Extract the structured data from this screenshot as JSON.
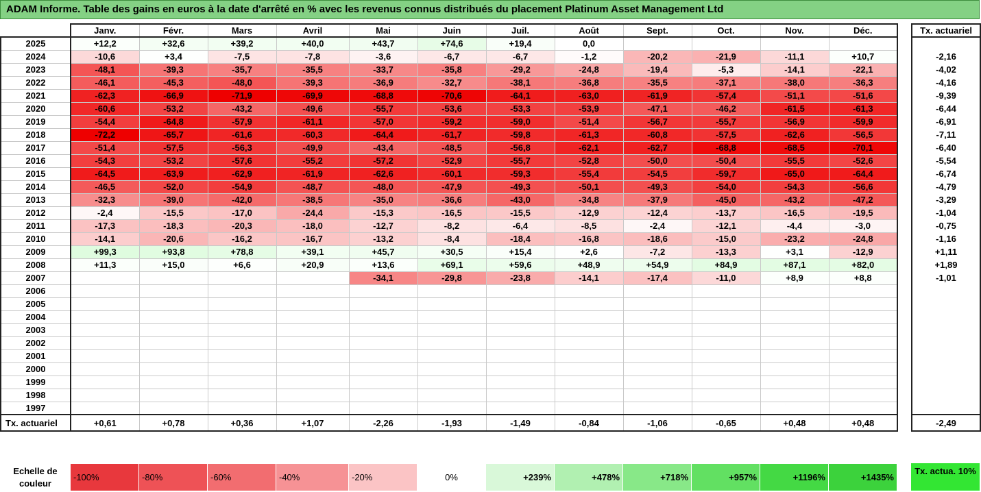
{
  "title": "ADAM Informe. Table des gains en euros à la date d'arrêté en % avec les revenus connus distribués du placement Platinum Asset Management Ltd",
  "months": [
    "Janv.",
    "Févr.",
    "Mars",
    "Avril",
    "Mai",
    "Juin",
    "Juil.",
    "Août",
    "Sept.",
    "Oct.",
    "Nov.",
    "Déc."
  ],
  "side_header": "Tx. actuariel",
  "rows": [
    {
      "year": "2025",
      "cells": [
        "+12,2",
        "+32,6",
        "+39,2",
        "+40,0",
        "+43,7",
        "+74,6",
        "+19,4",
        "0,0",
        "",
        "",
        "",
        ""
      ],
      "tx": ""
    },
    {
      "year": "2024",
      "cells": [
        "-10,6",
        "+3,4",
        "-7,5",
        "-7,8",
        "-3,6",
        "-6,7",
        "-6,7",
        "-1,2",
        "-20,2",
        "-21,9",
        "-11,1",
        "+10,7"
      ],
      "tx": "-2,16"
    },
    {
      "year": "2023",
      "cells": [
        "-48,1",
        "-39,3",
        "-35,7",
        "-35,5",
        "-33,7",
        "-35,8",
        "-29,2",
        "-24,8",
        "-19,4",
        "-5,3",
        "-14,1",
        "-22,1"
      ],
      "tx": "-4,02"
    },
    {
      "year": "2022",
      "cells": [
        "-46,1",
        "-45,3",
        "-48,0",
        "-39,3",
        "-36,9",
        "-32,7",
        "-38,1",
        "-36,8",
        "-35,5",
        "-37,1",
        "-38,0",
        "-36,3"
      ],
      "tx": "-4,16"
    },
    {
      "year": "2021",
      "cells": [
        "-62,3",
        "-66,9",
        "-71,9",
        "-69,9",
        "-68,8",
        "-70,6",
        "-64,1",
        "-63,0",
        "-61,9",
        "-57,4",
        "-51,1",
        "-51,6"
      ],
      "tx": "-9,39"
    },
    {
      "year": "2020",
      "cells": [
        "-60,6",
        "-53,2",
        "-43,2",
        "-49,6",
        "-55,7",
        "-53,6",
        "-53,3",
        "-53,9",
        "-47,1",
        "-46,2",
        "-61,5",
        "-61,3"
      ],
      "tx": "-6,44"
    },
    {
      "year": "2019",
      "cells": [
        "-54,4",
        "-64,8",
        "-57,9",
        "-61,1",
        "-57,0",
        "-59,2",
        "-59,0",
        "-51,4",
        "-56,7",
        "-55,7",
        "-56,9",
        "-59,9"
      ],
      "tx": "-6,91"
    },
    {
      "year": "2018",
      "cells": [
        "-72,2",
        "-65,7",
        "-61,6",
        "-60,3",
        "-64,4",
        "-61,7",
        "-59,8",
        "-61,3",
        "-60,8",
        "-57,5",
        "-62,6",
        "-56,5"
      ],
      "tx": "-7,11"
    },
    {
      "year": "2017",
      "cells": [
        "-51,4",
        "-57,5",
        "-56,3",
        "-49,9",
        "-43,4",
        "-48,5",
        "-56,8",
        "-62,1",
        "-62,7",
        "-68,8",
        "-68,5",
        "-70,1"
      ],
      "tx": "-6,40"
    },
    {
      "year": "2016",
      "cells": [
        "-54,3",
        "-53,2",
        "-57,6",
        "-55,2",
        "-57,2",
        "-52,9",
        "-55,7",
        "-52,8",
        "-50,0",
        "-50,4",
        "-55,5",
        "-52,6"
      ],
      "tx": "-5,54"
    },
    {
      "year": "2015",
      "cells": [
        "-64,5",
        "-63,9",
        "-62,9",
        "-61,9",
        "-62,6",
        "-60,1",
        "-59,3",
        "-55,4",
        "-54,5",
        "-59,7",
        "-65,0",
        "-64,4"
      ],
      "tx": "-6,74"
    },
    {
      "year": "2014",
      "cells": [
        "-46,5",
        "-52,0",
        "-54,9",
        "-48,7",
        "-48,0",
        "-47,9",
        "-49,3",
        "-50,1",
        "-49,3",
        "-54,0",
        "-54,3",
        "-56,6"
      ],
      "tx": "-4,79"
    },
    {
      "year": "2013",
      "cells": [
        "-32,3",
        "-39,0",
        "-42,0",
        "-38,5",
        "-35,0",
        "-36,6",
        "-43,0",
        "-34,8",
        "-37,9",
        "-45,0",
        "-43,2",
        "-47,2"
      ],
      "tx": "-3,29"
    },
    {
      "year": "2012",
      "cells": [
        "-2,4",
        "-15,5",
        "-17,0",
        "-24,4",
        "-15,3",
        "-16,5",
        "-15,5",
        "-12,9",
        "-12,4",
        "-13,7",
        "-16,5",
        "-19,5"
      ],
      "tx": "-1,04"
    },
    {
      "year": "2011",
      "cells": [
        "-17,3",
        "-18,3",
        "-20,3",
        "-18,0",
        "-12,7",
        "-8,2",
        "-6,4",
        "-8,5",
        "-2,4",
        "-12,1",
        "-4,4",
        "-3,0"
      ],
      "tx": "-0,75"
    },
    {
      "year": "2010",
      "cells": [
        "-14,1",
        "-20,6",
        "-16,2",
        "-16,7",
        "-13,2",
        "-8,4",
        "-18,4",
        "-16,8",
        "-18,6",
        "-15,0",
        "-23,2",
        "-24,8"
      ],
      "tx": "-1,16"
    },
    {
      "year": "2009",
      "cells": [
        "+99,3",
        "+93,8",
        "+78,8",
        "+39,1",
        "+45,7",
        "+30,5",
        "+15,4",
        "+2,6",
        "-7,2",
        "-13,3",
        "+3,1",
        "-12,9"
      ],
      "tx": "+1,11"
    },
    {
      "year": "2008",
      "cells": [
        "+11,3",
        "+15,0",
        "+6,6",
        "+20,9",
        "+13,6",
        "+69,1",
        "+59,6",
        "+48,9",
        "+54,9",
        "+84,9",
        "+87,1",
        "+82,0"
      ],
      "tx": "+1,89"
    },
    {
      "year": "2007",
      "cells": [
        "",
        "",
        "",
        "",
        "-34,1",
        "-29,8",
        "-23,8",
        "-14,1",
        "-17,4",
        "-11,0",
        "+8,9",
        "+8,8"
      ],
      "tx": "-1,01"
    },
    {
      "year": "2006",
      "cells": [
        "",
        "",
        "",
        "",
        "",
        "",
        "",
        "",
        "",
        "",
        "",
        ""
      ],
      "tx": ""
    },
    {
      "year": "2005",
      "cells": [
        "",
        "",
        "",
        "",
        "",
        "",
        "",
        "",
        "",
        "",
        "",
        ""
      ],
      "tx": ""
    },
    {
      "year": "2004",
      "cells": [
        "",
        "",
        "",
        "",
        "",
        "",
        "",
        "",
        "",
        "",
        "",
        ""
      ],
      "tx": ""
    },
    {
      "year": "2003",
      "cells": [
        "",
        "",
        "",
        "",
        "",
        "",
        "",
        "",
        "",
        "",
        "",
        ""
      ],
      "tx": ""
    },
    {
      "year": "2002",
      "cells": [
        "",
        "",
        "",
        "",
        "",
        "",
        "",
        "",
        "",
        "",
        "",
        ""
      ],
      "tx": ""
    },
    {
      "year": "2001",
      "cells": [
        "",
        "",
        "",
        "",
        "",
        "",
        "",
        "",
        "",
        "",
        "",
        ""
      ],
      "tx": ""
    },
    {
      "year": "2000",
      "cells": [
        "",
        "",
        "",
        "",
        "",
        "",
        "",
        "",
        "",
        "",
        "",
        ""
      ],
      "tx": ""
    },
    {
      "year": "1999",
      "cells": [
        "",
        "",
        "",
        "",
        "",
        "",
        "",
        "",
        "",
        "",
        "",
        ""
      ],
      "tx": ""
    },
    {
      "year": "1998",
      "cells": [
        "",
        "",
        "",
        "",
        "",
        "",
        "",
        "",
        "",
        "",
        "",
        ""
      ],
      "tx": ""
    },
    {
      "year": "1997",
      "cells": [
        "",
        "",
        "",
        "",
        "",
        "",
        "",
        "",
        "",
        "",
        "",
        ""
      ],
      "tx": ""
    }
  ],
  "tx_row": {
    "label": "Tx. actuariel",
    "cells": [
      "+0,61",
      "+0,78",
      "+0,36",
      "+1,07",
      "-2,26",
      "-1,93",
      "-1,49",
      "-0,84",
      "-1,06",
      "-0,65",
      "+0,48",
      "+0,48"
    ],
    "tx": "-2,49"
  },
  "legend": {
    "label": "Echelle de couleur",
    "items": [
      {
        "text": "-100%",
        "color": "#e8383d",
        "kind": "neg"
      },
      {
        "text": "-80%",
        "color": "#ee5256",
        "kind": "neg"
      },
      {
        "text": "-60%",
        "color": "#f26d70",
        "kind": "neg"
      },
      {
        "text": "-40%",
        "color": "#f69295",
        "kind": "neg"
      },
      {
        "text": "-20%",
        "color": "#fbc4c5",
        "kind": "neg"
      },
      {
        "text": "0%",
        "color": "#ffffff",
        "kind": "zero"
      },
      {
        "text": "+239%",
        "color": "#d9f8d9",
        "kind": "pos"
      },
      {
        "text": "+478%",
        "color": "#b1f0b1",
        "kind": "pos"
      },
      {
        "text": "+718%",
        "color": "#88e888",
        "kind": "pos"
      },
      {
        "text": "+957%",
        "color": "#62e062",
        "kind": "pos"
      },
      {
        "text": "+1196%",
        "color": "#44d944",
        "kind": "pos"
      },
      {
        "text": "+1435%",
        "color": "#3cd23c",
        "kind": "pos"
      }
    ],
    "tx_label": "Tx. actua. 10%",
    "tx_color": "#33e633"
  }
}
